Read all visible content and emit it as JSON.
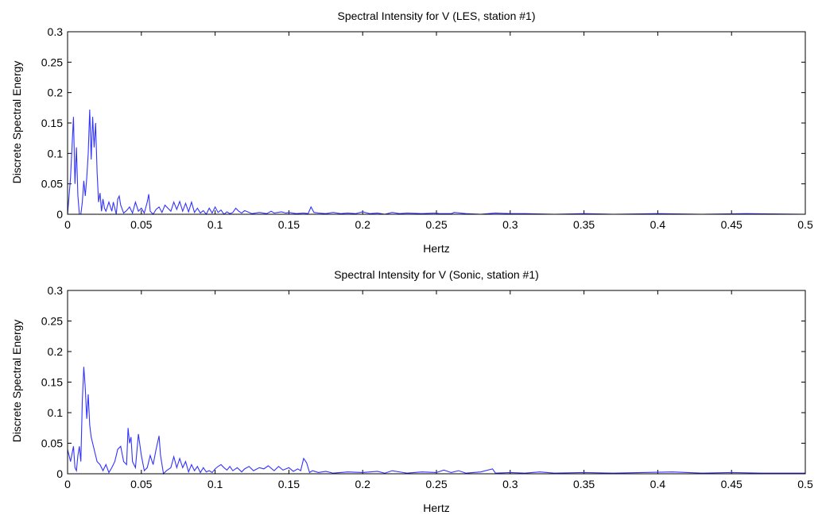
{
  "chart_data": [
    {
      "type": "line",
      "title": "Spectral Intensity for V  (LES, station #1)",
      "xlabel": "Hertz",
      "ylabel": "Discrete Spectral Energy",
      "xlim": [
        0,
        0.5
      ],
      "ylim": [
        0,
        0.3
      ],
      "xticks": [
        0,
        0.05,
        0.1,
        0.15,
        0.2,
        0.25,
        0.3,
        0.35,
        0.4,
        0.45,
        0.5
      ],
      "xtick_labels": [
        "0",
        "0.05",
        "0.1",
        "0.15",
        "0.2",
        "0.25",
        "0.3",
        "0.35",
        "0.4",
        "0.45",
        "0.5"
      ],
      "yticks": [
        0,
        0.05,
        0.1,
        0.15,
        0.2,
        0.25,
        0.3
      ],
      "ytick_labels": [
        "0",
        "0.05",
        "0.1",
        "0.15",
        "0.2",
        "0.25",
        "0.3"
      ],
      "grid": false,
      "color": "#3333ff",
      "series": [
        {
          "x": [
            0,
            0.002,
            0.004,
            0.005,
            0.006,
            0.007,
            0.008,
            0.009,
            0.01,
            0.011,
            0.012,
            0.013,
            0.014,
            0.015,
            0.016,
            0.017,
            0.018,
            0.019,
            0.02,
            0.021,
            0.022,
            0.023,
            0.024,
            0.025,
            0.026,
            0.028,
            0.03,
            0.031,
            0.032,
            0.033,
            0.034,
            0.035,
            0.036,
            0.038,
            0.04,
            0.042,
            0.044,
            0.046,
            0.048,
            0.05,
            0.052,
            0.054,
            0.055,
            0.056,
            0.058,
            0.06,
            0.062,
            0.064,
            0.066,
            0.068,
            0.07,
            0.072,
            0.074,
            0.076,
            0.078,
            0.08,
            0.082,
            0.084,
            0.086,
            0.088,
            0.09,
            0.092,
            0.094,
            0.096,
            0.098,
            0.1,
            0.102,
            0.104,
            0.106,
            0.108,
            0.11,
            0.112,
            0.114,
            0.116,
            0.118,
            0.12,
            0.125,
            0.13,
            0.135,
            0.138,
            0.14,
            0.145,
            0.148,
            0.15,
            0.155,
            0.16,
            0.163,
            0.165,
            0.167,
            0.17,
            0.175,
            0.18,
            0.185,
            0.19,
            0.195,
            0.2,
            0.205,
            0.21,
            0.215,
            0.22,
            0.225,
            0.23,
            0.24,
            0.25,
            0.252,
            0.26,
            0.262,
            0.27,
            0.28,
            0.29,
            0.3,
            0.31,
            0.33,
            0.35,
            0.37,
            0.4,
            0.43,
            0.46,
            0.5
          ],
          "y": [
            0.0,
            0.06,
            0.16,
            0.05,
            0.11,
            0.03,
            0.0,
            0.0,
            0.02,
            0.055,
            0.03,
            0.06,
            0.1,
            0.172,
            0.09,
            0.16,
            0.11,
            0.15,
            0.07,
            0.02,
            0.035,
            0.005,
            0.025,
            0.01,
            0.005,
            0.02,
            0.005,
            0.02,
            0.01,
            0.0,
            0.025,
            0.03,
            0.015,
            0.002,
            0.006,
            0.012,
            0.002,
            0.02,
            0.005,
            0.01,
            0.002,
            0.02,
            0.033,
            0.005,
            0.0,
            0.008,
            0.012,
            0.003,
            0.015,
            0.01,
            0.005,
            0.02,
            0.008,
            0.021,
            0.005,
            0.018,
            0.004,
            0.02,
            0.003,
            0.01,
            0.002,
            0.006,
            0.0,
            0.01,
            0.002,
            0.012,
            0.003,
            0.007,
            0.0,
            0.004,
            0.001,
            0.003,
            0.01,
            0.005,
            0.002,
            0.006,
            0.001,
            0.003,
            0.001,
            0.005,
            0.002,
            0.004,
            0.002,
            0.003,
            0.001,
            0.002,
            0.001,
            0.012,
            0.003,
            0.002,
            0.001,
            0.003,
            0.001,
            0.002,
            0.001,
            0.004,
            0.001,
            0.002,
            0.0,
            0.003,
            0.001,
            0.002,
            0.001,
            0.002,
            0.001,
            0.001,
            0.003,
            0.001,
            0.0,
            0.002,
            0.001,
            0.001,
            0.0,
            0.001,
            0.0,
            0.001,
            0.0,
            0.001,
            0.0
          ]
        }
      ]
    },
    {
      "type": "line",
      "title": "Spectral Intensity for V  (Sonic, station #1)",
      "xlabel": "Hertz",
      "ylabel": "Discrete Spectral Energy",
      "xlim": [
        0,
        0.5
      ],
      "ylim": [
        0,
        0.3
      ],
      "xticks": [
        0,
        0.05,
        0.1,
        0.15,
        0.2,
        0.25,
        0.3,
        0.35,
        0.4,
        0.45,
        0.5
      ],
      "xtick_labels": [
        "0",
        "0.05",
        "0.1",
        "0.15",
        "0.2",
        "0.25",
        "0.3",
        "0.35",
        "0.4",
        "0.45",
        "0.5"
      ],
      "yticks": [
        0,
        0.05,
        0.1,
        0.15,
        0.2,
        0.25,
        0.3
      ],
      "ytick_labels": [
        "0",
        "0.05",
        "0.1",
        "0.15",
        "0.2",
        "0.25",
        "0.3"
      ],
      "grid": false,
      "color": "#3333ff",
      "series": [
        {
          "x": [
            0,
            0.002,
            0.004,
            0.005,
            0.006,
            0.007,
            0.008,
            0.009,
            0.01,
            0.011,
            0.012,
            0.013,
            0.014,
            0.015,
            0.016,
            0.018,
            0.02,
            0.022,
            0.024,
            0.026,
            0.028,
            0.03,
            0.032,
            0.034,
            0.036,
            0.038,
            0.04,
            0.041,
            0.042,
            0.043,
            0.044,
            0.046,
            0.048,
            0.05,
            0.052,
            0.054,
            0.056,
            0.058,
            0.06,
            0.062,
            0.063,
            0.065,
            0.067,
            0.07,
            0.072,
            0.074,
            0.076,
            0.078,
            0.08,
            0.082,
            0.084,
            0.086,
            0.088,
            0.09,
            0.092,
            0.094,
            0.096,
            0.098,
            0.1,
            0.102,
            0.104,
            0.106,
            0.108,
            0.11,
            0.112,
            0.115,
            0.118,
            0.12,
            0.123,
            0.126,
            0.13,
            0.133,
            0.136,
            0.14,
            0.143,
            0.146,
            0.15,
            0.153,
            0.156,
            0.158,
            0.16,
            0.162,
            0.164,
            0.166,
            0.17,
            0.175,
            0.18,
            0.19,
            0.2,
            0.21,
            0.215,
            0.22,
            0.23,
            0.24,
            0.25,
            0.255,
            0.26,
            0.265,
            0.27,
            0.28,
            0.288,
            0.29,
            0.3,
            0.31,
            0.32,
            0.33,
            0.35,
            0.37,
            0.39,
            0.41,
            0.43,
            0.45,
            0.47,
            0.5
          ],
          "y": [
            0.04,
            0.02,
            0.045,
            0.01,
            0.005,
            0.03,
            0.045,
            0.02,
            0.12,
            0.175,
            0.14,
            0.09,
            0.13,
            0.08,
            0.06,
            0.04,
            0.02,
            0.015,
            0.005,
            0.015,
            0.002,
            0.01,
            0.02,
            0.04,
            0.045,
            0.02,
            0.015,
            0.075,
            0.05,
            0.06,
            0.02,
            0.01,
            0.065,
            0.03,
            0.005,
            0.01,
            0.03,
            0.015,
            0.04,
            0.062,
            0.03,
            0.0,
            0.005,
            0.01,
            0.028,
            0.01,
            0.025,
            0.01,
            0.02,
            0.003,
            0.015,
            0.005,
            0.012,
            0.002,
            0.01,
            0.003,
            0.005,
            0.002,
            0.008,
            0.012,
            0.015,
            0.01,
            0.006,
            0.012,
            0.005,
            0.01,
            0.003,
            0.008,
            0.012,
            0.005,
            0.01,
            0.008,
            0.013,
            0.005,
            0.012,
            0.006,
            0.01,
            0.004,
            0.008,
            0.005,
            0.025,
            0.018,
            0.002,
            0.005,
            0.002,
            0.004,
            0.001,
            0.003,
            0.002,
            0.004,
            0.001,
            0.005,
            0.001,
            0.003,
            0.002,
            0.006,
            0.002,
            0.005,
            0.001,
            0.003,
            0.008,
            0.001,
            0.002,
            0.001,
            0.003,
            0.001,
            0.002,
            0.001,
            0.002,
            0.003,
            0.001,
            0.002,
            0.001,
            0.001
          ]
        }
      ]
    }
  ]
}
